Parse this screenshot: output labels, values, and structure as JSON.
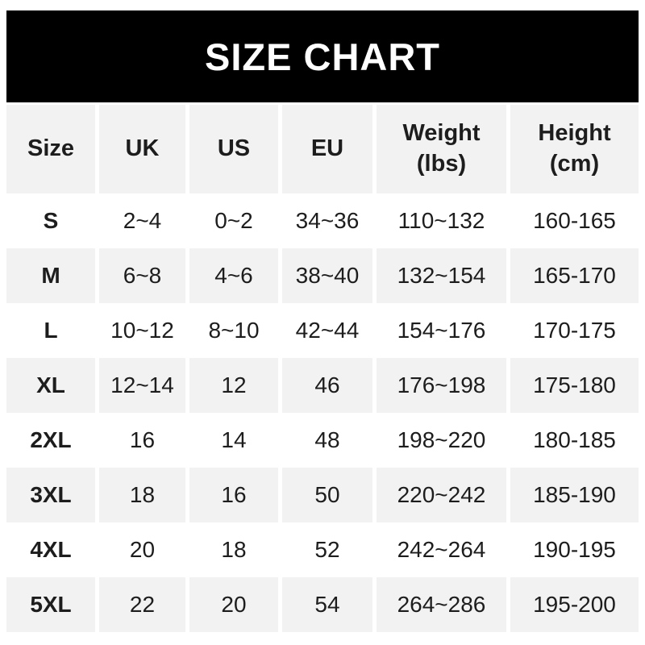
{
  "banner": {
    "title": "SIZE CHART"
  },
  "chart_data": {
    "type": "table",
    "title": "SIZE CHART",
    "columns": [
      {
        "label": "Size"
      },
      {
        "label": "UK"
      },
      {
        "label": "US"
      },
      {
        "label": "EU"
      },
      {
        "label": "Weight",
        "unit": "(lbs)"
      },
      {
        "label": "Height",
        "unit": "(cm)"
      }
    ],
    "rows": [
      [
        "S",
        "2~4",
        "0~2",
        "34~36",
        "110~132",
        "160-165"
      ],
      [
        "M",
        "6~8",
        "4~6",
        "38~40",
        "132~154",
        "165-170"
      ],
      [
        "L",
        "10~12",
        "8~10",
        "42~44",
        "154~176",
        "170-175"
      ],
      [
        "XL",
        "12~14",
        "12",
        "46",
        "176~198",
        "175-180"
      ],
      [
        "2XL",
        "16",
        "14",
        "48",
        "198~220",
        "180-185"
      ],
      [
        "3XL",
        "18",
        "16",
        "50",
        "220~242",
        "185-190"
      ],
      [
        "4XL",
        "20",
        "18",
        "52",
        "242~264",
        "190-195"
      ],
      [
        "5XL",
        "22",
        "20",
        "54",
        "264~286",
        "195-200"
      ]
    ],
    "layout": {
      "striped_rows": [
        "header",
        "M",
        "XL",
        "3XL",
        "5XL"
      ],
      "grid": "off",
      "legend": "none"
    }
  },
  "colors": {
    "page_bg": "#ffffff",
    "banner_bg": "#000000",
    "banner_text": "#ffffff",
    "stripe_bg": "#f2f2f2",
    "text": "#1d1d1d"
  }
}
